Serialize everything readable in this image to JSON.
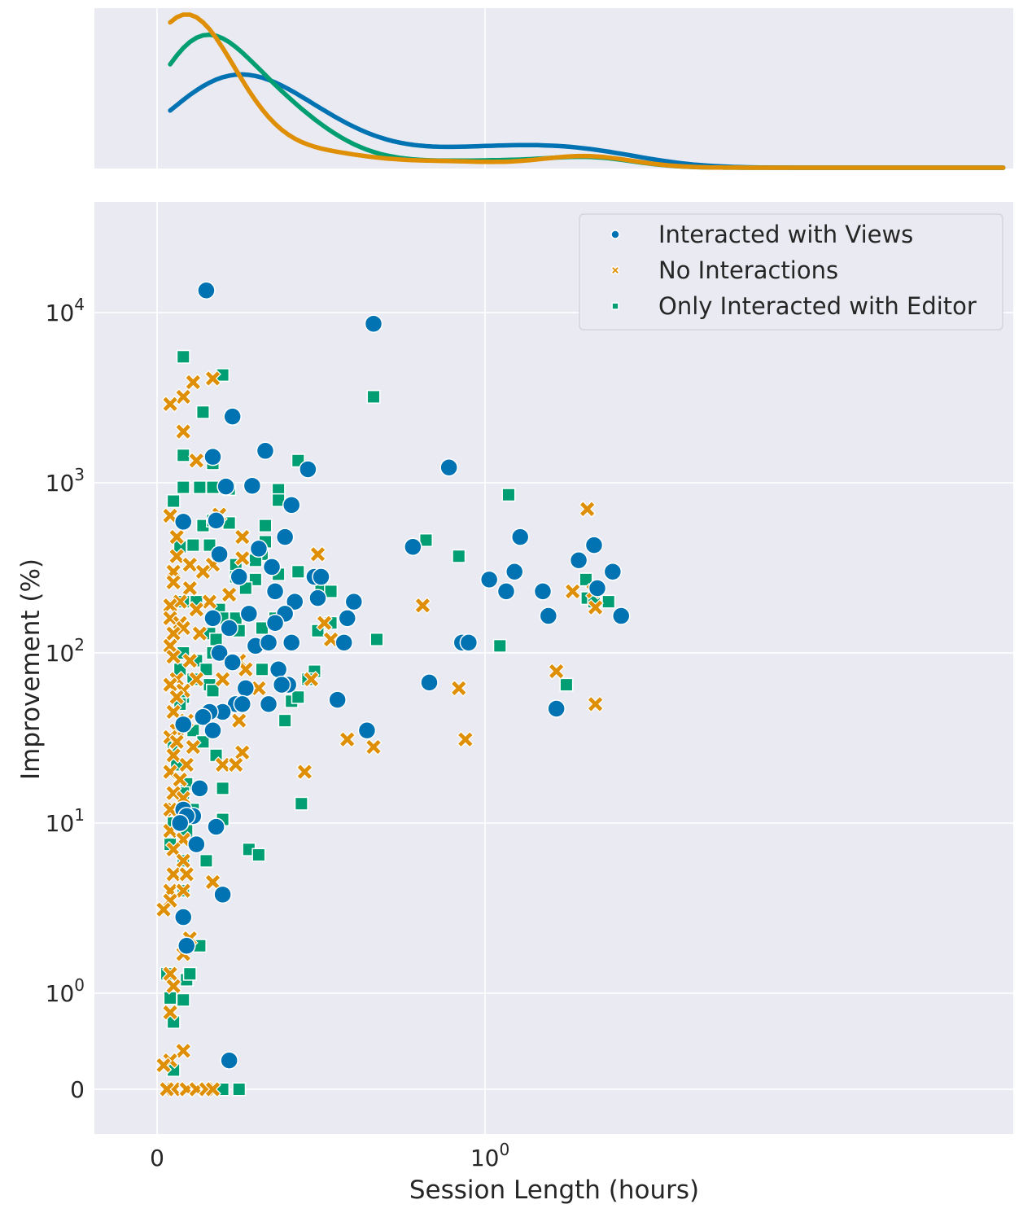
{
  "chart_data": {
    "type": "scatter",
    "xlabel": "Session Length (hours)",
    "ylabel": "Improvement (%)",
    "x_scale": "symlog",
    "y_scale": "symlog",
    "x_ticks": [
      {
        "value": 0,
        "base": "0",
        "exp": ""
      },
      {
        "value": 1,
        "base": "10",
        "exp": "0"
      }
    ],
    "y_ticks": [
      {
        "value": 0,
        "base": "0",
        "exp": ""
      },
      {
        "value": 1,
        "base": "10",
        "exp": "0"
      },
      {
        "value": 10,
        "base": "10",
        "exp": "1"
      },
      {
        "value": 100,
        "base": "10",
        "exp": "2"
      },
      {
        "value": 1000,
        "base": "10",
        "exp": "3"
      },
      {
        "value": 10000,
        "base": "10",
        "exp": "4"
      }
    ],
    "grid": true,
    "legend_placement": "top-right",
    "marginal": "top density curves per series",
    "series": [
      {
        "name": "Interacted with Views",
        "color": "#0173b2",
        "marker": "circle",
        "points": [
          [
            0.15,
            13500
          ],
          [
            0.66,
            8600
          ],
          [
            0.23,
            2450
          ],
          [
            0.17,
            1420
          ],
          [
            0.33,
            1540
          ],
          [
            0.46,
            1200
          ],
          [
            0.89,
            1230
          ],
          [
            0.41,
            740
          ],
          [
            0.29,
            960
          ],
          [
            0.21,
            950
          ],
          [
            0.08,
            590
          ],
          [
            0.18,
            600
          ],
          [
            0.39,
            480
          ],
          [
            0.31,
            410
          ],
          [
            0.35,
            320
          ],
          [
            0.19,
            380
          ],
          [
            0.25,
            280
          ],
          [
            0.48,
            280
          ],
          [
            0.5,
            280
          ],
          [
            0.36,
            230
          ],
          [
            0.42,
            200
          ],
          [
            0.39,
            170
          ],
          [
            0.49,
            210
          ],
          [
            0.6,
            200
          ],
          [
            0.58,
            160
          ],
          [
            0.28,
            170
          ],
          [
            0.17,
            160
          ],
          [
            0.22,
            140
          ],
          [
            0.36,
            150
          ],
          [
            0.3,
            110
          ],
          [
            0.41,
            115
          ],
          [
            0.34,
            115
          ],
          [
            0.57,
            115
          ],
          [
            0.19,
            100
          ],
          [
            0.23,
            88
          ],
          [
            0.37,
            80
          ],
          [
            0.4,
            65
          ],
          [
            0.38,
            65
          ],
          [
            0.27,
            62
          ],
          [
            0.24,
            50
          ],
          [
            0.26,
            50
          ],
          [
            0.34,
            50
          ],
          [
            0.55,
            53
          ],
          [
            0.2,
            45
          ],
          [
            0.16,
            45
          ],
          [
            0.14,
            42
          ],
          [
            0.17,
            35
          ],
          [
            0.08,
            38
          ],
          [
            0.64,
            35
          ],
          [
            0.78,
            420
          ],
          [
            1.28,
            480
          ],
          [
            1.03,
            270
          ],
          [
            1.23,
            300
          ],
          [
            1.16,
            230
          ],
          [
            1.5,
            230
          ],
          [
            1.56,
            165
          ],
          [
            1.93,
            350
          ],
          [
            2.15,
            430
          ],
          [
            2.2,
            240
          ],
          [
            2.45,
            300
          ],
          [
            2.6,
            165
          ],
          [
            0.83,
            67
          ],
          [
            0.93,
            115
          ],
          [
            0.95,
            115
          ],
          [
            1.65,
            47
          ],
          [
            0.13,
            16
          ],
          [
            0.08,
            12
          ],
          [
            0.11,
            11
          ],
          [
            0.09,
            11
          ],
          [
            0.07,
            10
          ],
          [
            0.18,
            9.5
          ],
          [
            0.12,
            7.5
          ],
          [
            0.2,
            3.8
          ],
          [
            0.08,
            2.8
          ],
          [
            0.09,
            1.9
          ],
          [
            0.22,
            0.3
          ]
        ]
      },
      {
        "name": "No Interactions",
        "color": "#de8f05",
        "marker": "x",
        "points": [
          [
            0.17,
            4100
          ],
          [
            0.11,
            3900
          ],
          [
            0.08,
            3200
          ],
          [
            0.04,
            2900
          ],
          [
            0.08,
            2000
          ],
          [
            0.12,
            1350
          ],
          [
            0.04,
            640
          ],
          [
            0.06,
            480
          ],
          [
            0.19,
            650
          ],
          [
            0.26,
            480
          ],
          [
            0.49,
            380
          ],
          [
            0.06,
            370
          ],
          [
            0.1,
            330
          ],
          [
            0.17,
            330
          ],
          [
            0.26,
            360
          ],
          [
            0.14,
            300
          ],
          [
            0.05,
            300
          ],
          [
            0.05,
            260
          ],
          [
            0.1,
            240
          ],
          [
            0.16,
            200
          ],
          [
            0.22,
            220
          ],
          [
            0.07,
            200
          ],
          [
            0.04,
            190
          ],
          [
            0.12,
            180
          ],
          [
            0.04,
            160
          ],
          [
            0.07,
            150
          ],
          [
            0.08,
            140
          ],
          [
            0.05,
            130
          ],
          [
            0.13,
            130
          ],
          [
            0.04,
            110
          ],
          [
            0.05,
            95
          ],
          [
            0.1,
            90
          ],
          [
            0.25,
            90
          ],
          [
            0.27,
            80
          ],
          [
            0.2,
            70
          ],
          [
            0.12,
            70
          ],
          [
            0.06,
            70
          ],
          [
            0.04,
            65
          ],
          [
            0.08,
            60
          ],
          [
            0.31,
            62
          ],
          [
            0.06,
            55
          ],
          [
            0.05,
            45
          ],
          [
            0.09,
            40
          ],
          [
            0.25,
            40
          ],
          [
            0.06,
            35
          ],
          [
            0.04,
            32
          ],
          [
            0.06,
            30
          ],
          [
            0.11,
            28
          ],
          [
            0.05,
            25
          ],
          [
            0.26,
            26
          ],
          [
            0.2,
            22
          ],
          [
            0.24,
            22
          ],
          [
            0.09,
            22
          ],
          [
            0.04,
            20
          ],
          [
            0.07,
            18
          ],
          [
            0.05,
            15
          ],
          [
            0.08,
            14
          ],
          [
            0.05,
            12
          ],
          [
            0.04,
            12
          ],
          [
            0.1,
            11
          ],
          [
            0.04,
            9
          ],
          [
            0.08,
            8
          ],
          [
            0.05,
            7
          ],
          [
            0.08,
            6
          ],
          [
            0.05,
            5
          ],
          [
            0.09,
            5
          ],
          [
            0.04,
            4
          ],
          [
            0.08,
            4
          ],
          [
            0.04,
            3.5
          ],
          [
            0.17,
            4.5
          ],
          [
            0.02,
            3.1
          ],
          [
            0.1,
            2.1
          ],
          [
            0.08,
            1.7
          ],
          [
            0.04,
            1.3
          ],
          [
            0.05,
            1.1
          ],
          [
            0.04,
            0.8
          ],
          [
            0.08,
            0.4
          ],
          [
            0.04,
            0.3
          ],
          [
            0.02,
            0.25
          ],
          [
            0.05,
            0
          ],
          [
            0.09,
            0
          ],
          [
            0.12,
            0
          ],
          [
            0.15,
            0
          ],
          [
            0.17,
            0
          ],
          [
            0.03,
            0
          ],
          [
            0.47,
            70
          ],
          [
            0.51,
            150
          ],
          [
            0.53,
            120
          ],
          [
            0.45,
            20
          ],
          [
            0.58,
            31
          ],
          [
            0.66,
            28
          ],
          [
            0.81,
            190
          ],
          [
            0.92,
            62
          ],
          [
            0.94,
            31
          ],
          [
            1.65,
            78
          ],
          [
            1.85,
            230
          ],
          [
            2.05,
            700
          ],
          [
            2.14,
            230
          ],
          [
            2.17,
            185
          ],
          [
            2.17,
            50
          ]
        ]
      },
      {
        "name": "Only Interacted with Editor",
        "color": "#029e73",
        "marker": "square",
        "points": [
          [
            0.08,
            5500
          ],
          [
            0.2,
            4300
          ],
          [
            0.14,
            2600
          ],
          [
            0.66,
            3200
          ],
          [
            0.08,
            1450
          ],
          [
            0.17,
            1300
          ],
          [
            0.43,
            1350
          ],
          [
            0.08,
            940
          ],
          [
            0.13,
            940
          ],
          [
            0.17,
            940
          ],
          [
            0.22,
            920
          ],
          [
            0.37,
            910
          ],
          [
            0.05,
            780
          ],
          [
            0.37,
            790
          ],
          [
            0.14,
            560
          ],
          [
            0.22,
            580
          ],
          [
            0.33,
            560
          ],
          [
            0.17,
            600
          ],
          [
            0.11,
            430
          ],
          [
            0.16,
            430
          ],
          [
            0.33,
            450
          ],
          [
            0.07,
            420
          ],
          [
            0.32,
            380
          ],
          [
            0.3,
            350
          ],
          [
            0.24,
            330
          ],
          [
            0.43,
            300
          ],
          [
            0.37,
            290
          ],
          [
            0.24,
            280
          ],
          [
            0.3,
            270
          ],
          [
            0.27,
            240
          ],
          [
            0.36,
            230
          ],
          [
            0.08,
            200
          ],
          [
            0.12,
            200
          ],
          [
            0.19,
            180
          ],
          [
            0.2,
            160
          ],
          [
            0.24,
            160
          ],
          [
            0.25,
            135
          ],
          [
            0.32,
            140
          ],
          [
            0.16,
            130
          ],
          [
            0.18,
            120
          ],
          [
            0.08,
            100
          ],
          [
            0.17,
            100
          ],
          [
            0.12,
            90
          ],
          [
            0.07,
            80
          ],
          [
            0.15,
            80
          ],
          [
            0.32,
            80
          ],
          [
            0.11,
            70
          ],
          [
            0.16,
            65
          ],
          [
            0.08,
            55
          ],
          [
            0.17,
            60
          ],
          [
            0.07,
            50
          ],
          [
            0.41,
            52
          ],
          [
            0.43,
            55
          ],
          [
            0.39,
            40
          ],
          [
            0.48,
            78
          ],
          [
            0.11,
            35
          ],
          [
            0.14,
            30
          ],
          [
            0.05,
            28
          ],
          [
            0.18,
            25
          ],
          [
            0.06,
            22
          ],
          [
            0.09,
            17
          ],
          [
            0.2,
            16
          ],
          [
            0.08,
            15
          ],
          [
            0.11,
            12
          ],
          [
            0.05,
            10
          ],
          [
            0.2,
            10.5
          ],
          [
            0.09,
            9
          ],
          [
            0.04,
            7.5
          ],
          [
            0.08,
            6
          ],
          [
            0.15,
            6
          ],
          [
            0.28,
            7
          ],
          [
            0.31,
            6.5
          ],
          [
            0.44,
            13
          ],
          [
            0.46,
            70
          ],
          [
            0.08,
            4
          ],
          [
            0.03,
            1.3
          ],
          [
            0.09,
            1.2
          ],
          [
            0.04,
            0.95
          ],
          [
            0.08,
            0.93
          ],
          [
            0.05,
            0.7
          ],
          [
            0.05,
            0.2
          ],
          [
            0.1,
            1.3
          ],
          [
            0.13,
            1.9
          ],
          [
            0.2,
            0
          ],
          [
            0.25,
            0
          ],
          [
            0.36,
            160
          ],
          [
            0.5,
            240
          ],
          [
            0.53,
            230
          ],
          [
            0.53,
            150
          ],
          [
            0.49,
            135
          ],
          [
            0.67,
            120
          ],
          [
            0.82,
            460
          ],
          [
            0.92,
            370
          ],
          [
            1.11,
            110
          ],
          [
            1.18,
            850
          ],
          [
            1.77,
            65
          ],
          [
            2.03,
            270
          ],
          [
            2.05,
            210
          ],
          [
            2.15,
            200
          ],
          [
            2.38,
            200
          ]
        ]
      }
    ]
  }
}
